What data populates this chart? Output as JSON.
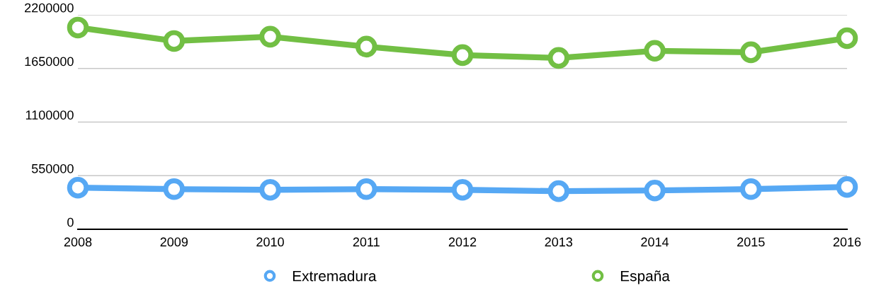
{
  "chart_data": {
    "type": "line",
    "categories": [
      "2008",
      "2009",
      "2010",
      "2011",
      "2012",
      "2013",
      "2014",
      "2015",
      "2016"
    ],
    "series": [
      {
        "name": "Extremadura",
        "color": "#56a8f4",
        "values": [
          427000,
          412000,
          405000,
          412000,
          405000,
          391000,
          398000,
          412000,
          434000
        ]
      },
      {
        "name": "España",
        "color": "#72bf44",
        "values": [
          2070000,
          1932000,
          1976000,
          1874000,
          1787000,
          1758000,
          1831000,
          1816000,
          1961000
        ]
      }
    ],
    "ylim": [
      0,
      2200000
    ],
    "yticks": [
      0,
      550000,
      1100000,
      1650000,
      2200000
    ],
    "grid": "y",
    "legend": "bottom",
    "marker": "circle",
    "line_style": "solid"
  }
}
